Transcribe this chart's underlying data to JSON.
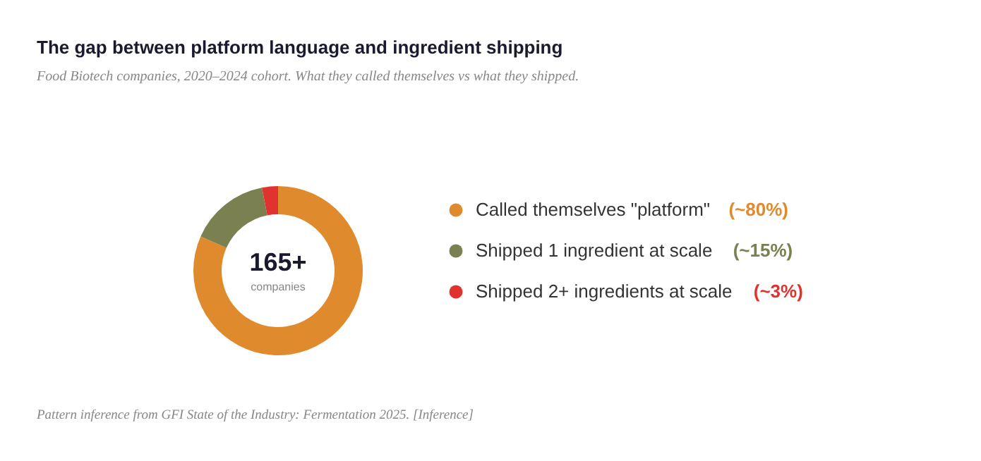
{
  "chart_data": {
    "type": "donut",
    "title": "The gap between platform language and ingredient shipping",
    "subtitle": "Food Biotech companies, 2020–2024 cohort. What they called themselves vs what they shipped.",
    "categories": [
      "Called themselves \"platform\"",
      "Shipped 1 ingredient at scale",
      "Shipped 2+ ingredients at scale"
    ],
    "values": [
      80,
      15,
      3
    ],
    "colors": [
      "#e08a2e",
      "#7a804f",
      "#e0332f"
    ],
    "value_labels": [
      "(~80%)",
      "(~15%)",
      "(~3%)"
    ],
    "legend": "right",
    "annotations": [
      "165+",
      "companies",
      "Pattern inference from GFI State of the Industry: Fermentation 2025. [Inference]"
    ]
  }
}
